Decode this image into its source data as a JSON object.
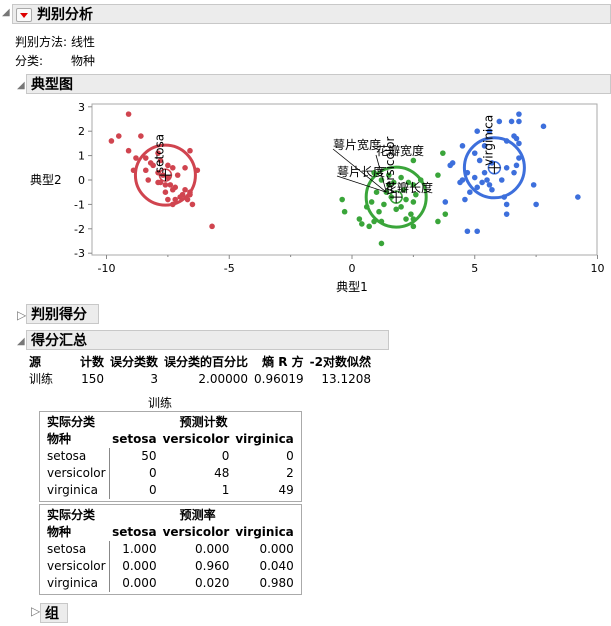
{
  "header": {
    "title": "判别分析",
    "method_label": "判别方法:",
    "method_value": "线性",
    "class_label": "分类:",
    "class_value": "物种"
  },
  "canonical": {
    "title": "典型图"
  },
  "chart_data": {
    "type": "scatter",
    "xlabel": "典型1",
    "ylabel": "典型2",
    "xlim": [
      -11,
      10.1
    ],
    "ylim": [
      -3,
      3
    ],
    "xticks": [
      -10,
      -5,
      0,
      5,
      10
    ],
    "yticks": [
      3,
      2,
      1,
      0,
      -1,
      -2,
      -3
    ],
    "series": [
      {
        "name": "setosa",
        "color": "#d0444f",
        "centroid": [
          -7.6,
          0.2
        ],
        "points": [
          [
            -9.1,
            2.7
          ],
          [
            -9.5,
            1.8
          ],
          [
            -8.6,
            1.8
          ],
          [
            -9.8,
            1.6
          ],
          [
            -9.1,
            1.2
          ],
          [
            -6.6,
            1.2
          ],
          [
            -8.8,
            0.9
          ],
          [
            -8.4,
            0.9
          ],
          [
            -7.9,
            1.1
          ],
          [
            -8.2,
            0.7
          ],
          [
            -8.1,
            0.6
          ],
          [
            -7.8,
            0.8
          ],
          [
            -7.5,
            0.6
          ],
          [
            -7.3,
            0.5
          ],
          [
            -6.8,
            0.5
          ],
          [
            -6.3,
            0.4
          ],
          [
            -8.9,
            0.4
          ],
          [
            -8.4,
            0.4
          ],
          [
            -7.9,
            0.3
          ],
          [
            -7.7,
            0.2
          ],
          [
            -7.5,
            0.1
          ],
          [
            -7.1,
            0.2
          ],
          [
            -8.3,
            0.0
          ],
          [
            -7.8,
            -0.1
          ],
          [
            -7.6,
            -0.2
          ],
          [
            -7.4,
            -0.2
          ],
          [
            -7.2,
            -0.3
          ],
          [
            -6.8,
            -0.4
          ],
          [
            -6.6,
            -0.5
          ],
          [
            -7.3,
            -0.4
          ],
          [
            -6.9,
            -0.6
          ],
          [
            -7.0,
            -0.7
          ],
          [
            -7.2,
            -0.8
          ],
          [
            -6.7,
            -0.8
          ],
          [
            -7.5,
            -0.8
          ],
          [
            -7.3,
            -1.0
          ],
          [
            -6.5,
            -1.0
          ],
          [
            -6.6,
            -0.6
          ],
          [
            -7.9,
            -0.1
          ],
          [
            -7.6,
            -0.5
          ],
          [
            -5.7,
            -1.9
          ]
        ]
      },
      {
        "name": "versicolor",
        "color": "#3aa53a",
        "centroid": [
          1.8,
          -0.7
        ],
        "points": [
          [
            3.7,
            1.1
          ],
          [
            2.5,
            0.8
          ],
          [
            0.9,
            0.3
          ],
          [
            1.5,
            0.2
          ],
          [
            2.0,
            0.1
          ],
          [
            2.8,
            0.0
          ],
          [
            3.5,
            0.2
          ],
          [
            1.2,
            0.0
          ],
          [
            1.7,
            -0.1
          ],
          [
            2.3,
            -0.1
          ],
          [
            2.5,
            -0.2
          ],
          [
            1.0,
            -0.5
          ],
          [
            1.4,
            -0.5
          ],
          [
            2.1,
            -0.4
          ],
          [
            2.6,
            -0.6
          ],
          [
            1.6,
            -0.7
          ],
          [
            2.2,
            -0.8
          ],
          [
            -0.4,
            -0.8
          ],
          [
            0.8,
            -0.9
          ],
          [
            1.3,
            -1.0
          ],
          [
            2.0,
            -1.1
          ],
          [
            2.5,
            -0.9
          ],
          [
            3.8,
            -1.4
          ],
          [
            -0.3,
            -1.3
          ],
          [
            0.6,
            -1.1
          ],
          [
            1.1,
            -1.3
          ],
          [
            2.4,
            -1.4
          ],
          [
            0.3,
            -1.6
          ],
          [
            0.9,
            -1.7
          ],
          [
            1.2,
            -1.7
          ],
          [
            2.2,
            -1.6
          ],
          [
            2.5,
            -1.6
          ],
          [
            3.5,
            -1.7
          ],
          [
            0.4,
            -1.8
          ],
          [
            0.7,
            -1.9
          ],
          [
            2.5,
            -1.9
          ],
          [
            1.2,
            -2.6
          ],
          [
            1.8,
            -1.2
          ],
          [
            1.5,
            -0.2
          ]
        ]
      },
      {
        "name": "virginica",
        "color": "#3d6fdc",
        "centroid": [
          5.8,
          0.5
        ],
        "points": [
          [
            6.8,
            2.7
          ],
          [
            6.8,
            2.4
          ],
          [
            6.5,
            2.4
          ],
          [
            6.0,
            2.4
          ],
          [
            7.8,
            2.2
          ],
          [
            5.1,
            2.0
          ],
          [
            5.6,
            2.0
          ],
          [
            6.6,
            1.8
          ],
          [
            6.7,
            1.7
          ],
          [
            6.3,
            1.6
          ],
          [
            6.8,
            1.5
          ],
          [
            4.5,
            1.4
          ],
          [
            5.4,
            1.4
          ],
          [
            5.0,
            1.1
          ],
          [
            6.8,
            0.9
          ],
          [
            5.2,
            0.8
          ],
          [
            4.1,
            0.7
          ],
          [
            4.0,
            0.6
          ],
          [
            5.7,
            0.7
          ],
          [
            6.3,
            0.5
          ],
          [
            6.7,
            0.6
          ],
          [
            5.4,
            0.3
          ],
          [
            5.0,
            0.1
          ],
          [
            5.5,
            0.0
          ],
          [
            6.1,
            0.0
          ],
          [
            6.6,
            0.3
          ],
          [
            4.5,
            0.0
          ],
          [
            4.7,
            0.3
          ],
          [
            5.3,
            -0.1
          ],
          [
            5.6,
            -0.2
          ],
          [
            5.1,
            -0.3
          ],
          [
            5.7,
            -0.4
          ],
          [
            4.4,
            -0.1
          ],
          [
            4.8,
            -0.5
          ],
          [
            7.4,
            -0.2
          ],
          [
            6.2,
            -0.7
          ],
          [
            9.2,
            -0.7
          ],
          [
            4.6,
            -0.8
          ],
          [
            3.8,
            -0.9
          ],
          [
            6.3,
            -1.0
          ],
          [
            7.5,
            -1.0
          ],
          [
            6.3,
            -1.4
          ],
          [
            4.7,
            -2.1
          ],
          [
            5.1,
            -2.1
          ]
        ]
      }
    ],
    "biplot_rays": [
      "萼片宽度",
      "花瓣宽度",
      "萼片长度",
      "花瓣长度"
    ]
  },
  "scores": {
    "title": "判别得分"
  },
  "summary": {
    "title": "得分汇总",
    "headers": [
      "源",
      "计数",
      "误分类数",
      "误分类的百分比",
      "熵 R 方",
      "-2对数似然"
    ],
    "row": [
      "训练",
      "150",
      "3",
      "2.00000",
      "0.96019",
      "13.1208"
    ],
    "caption": "训练",
    "counts": {
      "actual_label": "实际分类",
      "pred_label": "预测计数",
      "col0": "物种",
      "cols": [
        "setosa",
        "versicolor",
        "virginica"
      ],
      "rows": [
        [
          "setosa",
          "50",
          "0",
          "0"
        ],
        [
          "versicolor",
          "0",
          "48",
          "2"
        ],
        [
          "virginica",
          "0",
          "1",
          "49"
        ]
      ]
    },
    "rates": {
      "actual_label": "实际分类",
      "pred_label": "预测率",
      "col0": "物种",
      "cols": [
        "setosa",
        "versicolor",
        "virginica"
      ],
      "rows": [
        [
          "setosa",
          "1.000",
          "0.000",
          "0.000"
        ],
        [
          "versicolor",
          "0.000",
          "0.960",
          "0.040"
        ],
        [
          "virginica",
          "0.000",
          "0.020",
          "0.980"
        ]
      ]
    }
  },
  "groups": {
    "title": "组"
  }
}
